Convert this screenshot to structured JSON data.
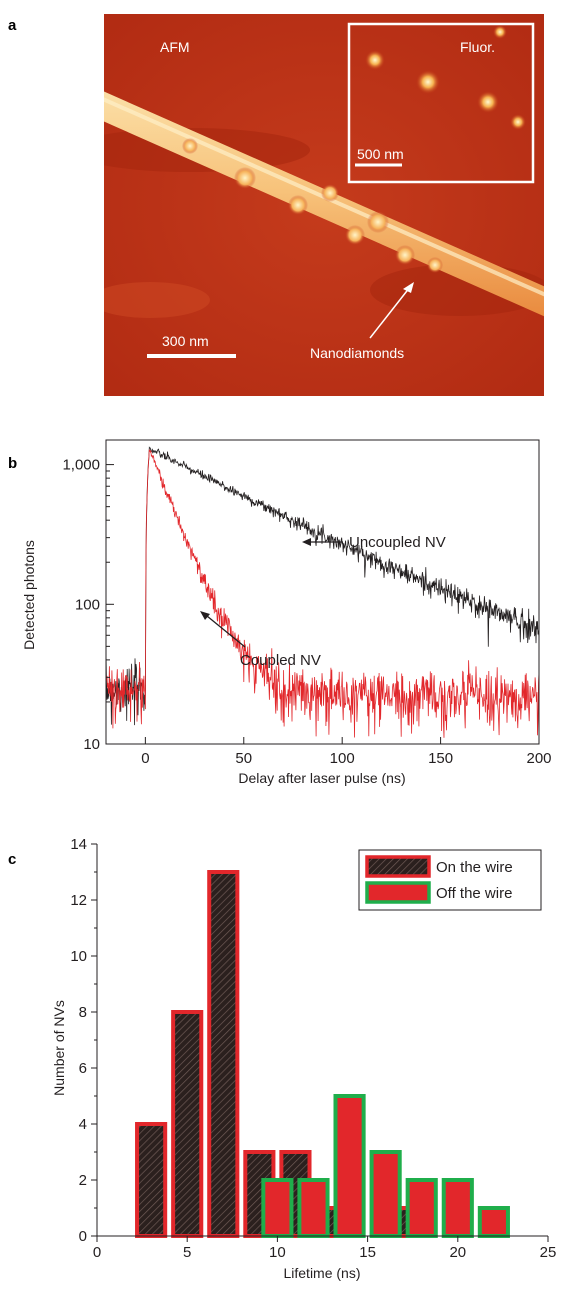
{
  "panels": {
    "a": {
      "label": "a",
      "afm_label": "AFM",
      "inset_label": "Fluor.",
      "scale_main": "300 nm",
      "scale_inset": "500 nm",
      "arrow_label": "Nanodiamonds",
      "colors": {
        "background": "#bc3418",
        "wire": "#f6c47c",
        "inset_border": "#ffffff"
      }
    },
    "b": {
      "label": "b"
    },
    "c": {
      "label": "c"
    }
  },
  "chart_data": [
    {
      "type": "line",
      "panel": "b",
      "xlabel": "Delay after laser pulse (ns)",
      "ylabel": "Detected photons",
      "xlim": [
        -20,
        200
      ],
      "ylim": [
        10,
        1500
      ],
      "yscale": "log",
      "xticks": [
        0,
        50,
        100,
        150,
        200
      ],
      "xtick_labels": [
        "0",
        "50",
        "100",
        "150",
        "200"
      ],
      "yticks": [
        10,
        100,
        1000
      ],
      "ytick_labels": [
        "10",
        "100",
        "1,000"
      ],
      "grid": false,
      "series": [
        {
          "name": "Uncoupled NV",
          "color": "#231f20",
          "baseline": 25,
          "rise_start": 0,
          "peak_x": 2,
          "peak": 1300,
          "decay_tau_ns": 60,
          "background": 20,
          "x": [
            -20,
            -1,
            2,
            25,
            50,
            75,
            100,
            125,
            150,
            175,
            200
          ],
          "y": [
            25,
            25,
            1300,
            900,
            560,
            380,
            240,
            160,
            110,
            75,
            50
          ]
        },
        {
          "name": "Coupled NV",
          "color": "#e2272b",
          "baseline": 25,
          "rise_start": 0,
          "peak_x": 2,
          "peak": 1300,
          "decay_tau_ns": 12,
          "background": 22,
          "x": [
            -20,
            -1,
            2,
            10,
            20,
            30,
            40,
            50,
            100,
            150,
            200
          ],
          "y": [
            25,
            25,
            1300,
            600,
            250,
            110,
            50,
            30,
            25,
            24,
            24
          ]
        }
      ],
      "annotations": [
        {
          "text": "Uncoupled NV",
          "arrow_to": [
            78,
            500
          ]
        },
        {
          "text": "Coupled NV",
          "arrow_to": [
            28,
            130
          ]
        }
      ]
    },
    {
      "type": "bar",
      "panel": "c",
      "xlabel": "Lifetime (ns)",
      "ylabel": "Number of NVs",
      "xlim": [
        0,
        25
      ],
      "ylim": [
        0,
        14
      ],
      "xticks": [
        0,
        5,
        10,
        15,
        20,
        25
      ],
      "yticks": [
        0,
        2,
        4,
        6,
        8,
        10,
        12,
        14
      ],
      "legend": "top-right",
      "bin_width": 2,
      "grid": false,
      "series": [
        {
          "name": "On the wire",
          "fill": "#2b201e",
          "hatch": true,
          "edge": "#e2272b",
          "x": [
            3,
            5,
            7,
            9,
            11,
            13,
            15,
            17
          ],
          "values": [
            4,
            8,
            13,
            3,
            3,
            1,
            0,
            1
          ]
        },
        {
          "name": "Off the wire",
          "fill": "#e2272b",
          "hatch": false,
          "edge": "#1fae4b",
          "x": [
            10,
            12,
            14,
            16,
            18,
            20,
            22
          ],
          "values": [
            2,
            2,
            5,
            3,
            2,
            2,
            1
          ]
        }
      ]
    }
  ]
}
